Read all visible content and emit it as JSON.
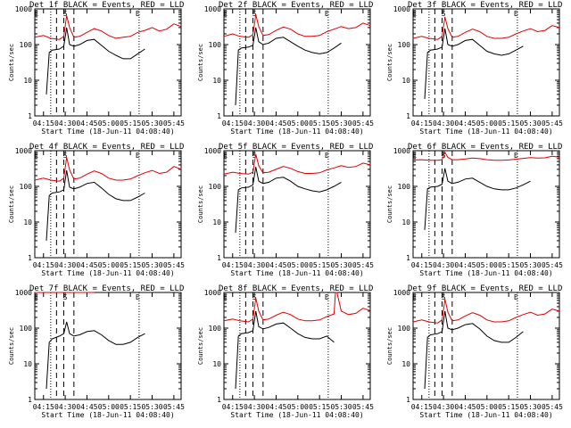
{
  "common": {
    "title_suffix": "BLACK = Events, RED = LLD",
    "ylabel": "Counts/sec",
    "xlabel": "Start Time (18-Jun-11 04:08:40)",
    "x_ticks": [
      "04:15",
      "04:30",
      "04:45",
      "05:00",
      "05:15",
      "05:30",
      "05:45"
    ],
    "y_ticks": [
      "1",
      "10",
      "100",
      "1000"
    ],
    "event_markers": [
      "E",
      "S",
      "E"
    ],
    "colors": {
      "events": "#000000",
      "lld": "#e00000",
      "axes": "#000000"
    }
  },
  "chart_data": [
    {
      "type": "line",
      "panel_label": "Det 1f",
      "ylim": [
        1,
        1000
      ],
      "y_scale": "log",
      "xlim": [
        "04:09",
        "05:50"
      ],
      "grid": false,
      "series": [
        {
          "name": "BLACK = Events",
          "x": [
            "04:17",
            "04:19",
            "04:21",
            "04:26",
            "04:29",
            "04:31",
            "04:33",
            "04:36",
            "04:40",
            "04:45",
            "04:50",
            "04:55",
            "05:00",
            "05:05",
            "05:10",
            "05:15",
            "05:20",
            "05:25"
          ],
          "values": [
            4,
            60,
            70,
            75,
            90,
            300,
            100,
            90,
            100,
            130,
            140,
            95,
            65,
            50,
            40,
            40,
            55,
            75
          ]
        },
        {
          "name": "RED = LLD",
          "x": [
            "04:09",
            "04:15",
            "04:20",
            "04:26",
            "04:29",
            "04:31",
            "04:33",
            "04:36",
            "04:40",
            "04:45",
            "04:50",
            "04:55",
            "05:00",
            "05:05",
            "05:10",
            "05:15",
            "05:20",
            "05:25",
            "05:30",
            "05:35",
            "05:40",
            "05:45",
            "05:50"
          ],
          "values": [
            160,
            180,
            150,
            140,
            170,
            650,
            300,
            160,
            170,
            220,
            280,
            240,
            180,
            150,
            160,
            170,
            220,
            250,
            300,
            240,
            270,
            380,
            320
          ]
        }
      ]
    },
    {
      "type": "line",
      "panel_label": "Det 2f",
      "ylim": [
        1,
        1000
      ],
      "y_scale": "log",
      "xlim": [
        "04:09",
        "05:50"
      ],
      "grid": false,
      "series": [
        {
          "name": "BLACK = Events",
          "x": [
            "04:17",
            "04:19",
            "04:21",
            "04:26",
            "04:29",
            "04:31",
            "04:33",
            "04:36",
            "04:40",
            "04:45",
            "04:50",
            "04:55",
            "05:00",
            "05:05",
            "05:10",
            "05:15",
            "05:20",
            "05:25",
            "05:30"
          ],
          "values": [
            2,
            70,
            80,
            85,
            95,
            300,
            120,
            100,
            110,
            150,
            160,
            120,
            90,
            70,
            60,
            55,
            60,
            80,
            110
          ]
        },
        {
          "name": "RED = LLD",
          "x": [
            "04:09",
            "04:15",
            "04:20",
            "04:26",
            "04:29",
            "04:31",
            "04:33",
            "04:36",
            "04:40",
            "04:45",
            "04:50",
            "04:55",
            "05:00",
            "05:05",
            "05:10",
            "05:15",
            "05:20",
            "05:25",
            "05:30",
            "05:35",
            "05:40",
            "05:45",
            "05:50"
          ],
          "values": [
            170,
            200,
            170,
            160,
            190,
            700,
            320,
            180,
            190,
            250,
            310,
            270,
            200,
            170,
            170,
            180,
            230,
            270,
            320,
            280,
            300,
            400,
            340
          ]
        }
      ]
    },
    {
      "type": "line",
      "panel_label": "Det 3f",
      "ylim": [
        1,
        1000
      ],
      "y_scale": "log",
      "xlim": [
        "04:09",
        "05:50"
      ],
      "grid": false,
      "series": [
        {
          "name": "BLACK = Events",
          "x": [
            "04:17",
            "04:19",
            "04:21",
            "04:26",
            "04:29",
            "04:31",
            "04:33",
            "04:36",
            "04:40",
            "04:45",
            "04:50",
            "04:55",
            "05:00",
            "05:05",
            "05:10",
            "05:15",
            "05:20",
            "05:25"
          ],
          "values": [
            3,
            60,
            70,
            75,
            85,
            280,
            100,
            90,
            100,
            130,
            140,
            95,
            65,
            55,
            50,
            55,
            70,
            90
          ]
        },
        {
          "name": "RED = LLD",
          "x": [
            "04:09",
            "04:15",
            "04:20",
            "04:26",
            "04:29",
            "04:31",
            "04:33",
            "04:36",
            "04:40",
            "04:45",
            "04:50",
            "04:55",
            "05:00",
            "05:05",
            "05:10",
            "05:15",
            "05:20",
            "05:25",
            "05:30",
            "05:35",
            "05:40",
            "05:45",
            "05:50"
          ],
          "values": [
            150,
            170,
            150,
            140,
            170,
            600,
            280,
            160,
            170,
            220,
            270,
            230,
            170,
            150,
            150,
            160,
            200,
            240,
            280,
            230,
            250,
            340,
            300
          ]
        }
      ]
    },
    {
      "type": "line",
      "panel_label": "Det 4f",
      "ylim": [
        1,
        1000
      ],
      "y_scale": "log",
      "xlim": [
        "04:09",
        "05:50"
      ],
      "grid": false,
      "series": [
        {
          "name": "BLACK = Events",
          "x": [
            "04:17",
            "04:19",
            "04:21",
            "04:26",
            "04:29",
            "04:31",
            "04:33",
            "04:36",
            "04:40",
            "04:45",
            "04:50",
            "04:55",
            "05:00",
            "05:05",
            "05:10",
            "05:15",
            "05:20",
            "05:25"
          ],
          "values": [
            3,
            55,
            65,
            70,
            80,
            280,
            95,
            85,
            95,
            120,
            130,
            90,
            60,
            45,
            40,
            40,
            50,
            65
          ]
        },
        {
          "name": "RED = LLD",
          "x": [
            "04:09",
            "04:15",
            "04:20",
            "04:26",
            "04:29",
            "04:31",
            "04:33",
            "04:36",
            "04:40",
            "04:45",
            "04:50",
            "04:55",
            "05:00",
            "05:05",
            "05:10",
            "05:15",
            "05:20",
            "05:25",
            "05:30",
            "05:35",
            "05:40",
            "05:45",
            "05:50"
          ],
          "values": [
            150,
            170,
            150,
            140,
            170,
            650,
            290,
            160,
            170,
            220,
            270,
            230,
            170,
            150,
            150,
            160,
            200,
            240,
            280,
            230,
            250,
            360,
            300
          ]
        }
      ]
    },
    {
      "type": "line",
      "panel_label": "Det 5f",
      "ylim": [
        1,
        1000
      ],
      "y_scale": "log",
      "xlim": [
        "04:09",
        "05:50"
      ],
      "grid": false,
      "series": [
        {
          "name": "BLACK = Events",
          "x": [
            "04:17",
            "04:19",
            "04:21",
            "04:26",
            "04:29",
            "04:31",
            "04:33",
            "04:36",
            "04:40",
            "04:45",
            "04:50",
            "04:55",
            "05:00",
            "05:05",
            "05:10",
            "05:15",
            "05:20",
            "05:25",
            "05:30"
          ],
          "values": [
            5,
            80,
            90,
            95,
            110,
            350,
            140,
            120,
            130,
            170,
            180,
            140,
            100,
            85,
            75,
            70,
            80,
            100,
            130
          ]
        },
        {
          "name": "RED = LLD",
          "x": [
            "04:09",
            "04:15",
            "04:20",
            "04:26",
            "04:29",
            "04:31",
            "04:33",
            "04:36",
            "04:40",
            "04:45",
            "04:50",
            "04:55",
            "05:00",
            "05:05",
            "05:10",
            "05:15",
            "05:20",
            "05:25",
            "05:30",
            "05:35",
            "05:40",
            "05:45",
            "05:50"
          ],
          "values": [
            220,
            250,
            230,
            220,
            250,
            800,
            380,
            240,
            250,
            300,
            360,
            320,
            260,
            230,
            230,
            240,
            290,
            330,
            380,
            340,
            360,
            450,
            400
          ]
        }
      ]
    },
    {
      "type": "line",
      "panel_label": "Det 6f",
      "ylim": [
        1,
        1000
      ],
      "y_scale": "log",
      "xlim": [
        "04:09",
        "05:50"
      ],
      "grid": false,
      "series": [
        {
          "name": "BLACK = Events",
          "x": [
            "04:17",
            "04:19",
            "04:21",
            "04:26",
            "04:29",
            "04:31",
            "04:33",
            "04:36",
            "04:40",
            "04:45",
            "04:50",
            "04:55",
            "05:00",
            "05:05",
            "05:10",
            "05:15",
            "05:20",
            "05:25",
            "05:30"
          ],
          "values": [
            6,
            85,
            95,
            100,
            115,
            320,
            140,
            120,
            130,
            160,
            170,
            130,
            100,
            85,
            80,
            80,
            90,
            110,
            140
          ]
        },
        {
          "name": "RED = LLD",
          "x": [
            "04:09",
            "04:15",
            "04:20",
            "04:26",
            "04:29",
            "04:31",
            "04:33",
            "04:36",
            "04:40",
            "04:45",
            "04:50",
            "04:55",
            "05:00",
            "05:05",
            "05:10",
            "05:15",
            "05:20",
            "05:25",
            "05:30",
            "05:35",
            "05:40",
            "05:45",
            "05:50"
          ],
          "values": [
            550,
            560,
            540,
            540,
            560,
            900,
            650,
            560,
            560,
            590,
            620,
            600,
            560,
            540,
            540,
            550,
            580,
            610,
            640,
            620,
            630,
            700,
            660
          ]
        }
      ]
    },
    {
      "type": "line",
      "panel_label": "Det 7f",
      "ylim": [
        1,
        1000
      ],
      "y_scale": "log",
      "xlim": [
        "04:09",
        "05:50"
      ],
      "grid": false,
      "series": [
        {
          "name": "BLACK = Events",
          "x": [
            "04:17",
            "04:19",
            "04:21",
            "04:26",
            "04:29",
            "04:31",
            "04:33",
            "04:36",
            "04:40",
            "04:45",
            "04:50",
            "04:55",
            "05:00",
            "05:05",
            "05:10",
            "05:15",
            "05:20",
            "05:25"
          ],
          "values": [
            2,
            40,
            50,
            60,
            70,
            150,
            70,
            60,
            65,
            80,
            85,
            65,
            45,
            35,
            35,
            40,
            55,
            70
          ]
        },
        {
          "name": "RED = LLD",
          "x": [
            "04:09",
            "04:15",
            "04:20",
            "04:26",
            "04:29",
            "04:31",
            "04:33",
            "04:36",
            "04:40",
            "04:45",
            "04:50"
          ],
          "values": [
            1000,
            1000,
            1000,
            1000,
            1000,
            1000,
            1000,
            1000,
            1000,
            1000,
            1000
          ]
        }
      ]
    },
    {
      "type": "line",
      "panel_label": "Det 8f",
      "ylim": [
        1,
        1000
      ],
      "y_scale": "log",
      "xlim": [
        "04:09",
        "05:50"
      ],
      "grid": false,
      "series": [
        {
          "name": "BLACK = Events",
          "x": [
            "04:17",
            "04:19",
            "04:21",
            "04:26",
            "04:29",
            "04:31",
            "04:33",
            "04:36",
            "04:40",
            "04:45",
            "04:50",
            "04:55",
            "05:00",
            "05:05",
            "05:10",
            "05:15",
            "05:20",
            "05:25"
          ],
          "values": [
            2,
            60,
            70,
            75,
            85,
            300,
            110,
            95,
            105,
            130,
            140,
            100,
            70,
            55,
            50,
            50,
            60,
            40
          ]
        },
        {
          "name": "RED = LLD",
          "x": [
            "04:09",
            "04:15",
            "04:20",
            "04:26",
            "04:29",
            "04:31",
            "04:33",
            "04:36",
            "04:40",
            "04:45",
            "04:50",
            "04:55",
            "05:00",
            "05:05",
            "05:10",
            "05:15",
            "05:20",
            "05:25",
            "05:26",
            "05:27",
            "05:30",
            "05:35",
            "05:40",
            "05:45",
            "05:50"
          ],
          "values": [
            160,
            180,
            160,
            150,
            180,
            700,
            300,
            170,
            180,
            230,
            280,
            240,
            180,
            160,
            160,
            170,
            210,
            250,
            1000,
            1000,
            300,
            240,
            260,
            360,
            310
          ]
        }
      ]
    },
    {
      "type": "line",
      "panel_label": "Det 9f",
      "ylim": [
        1,
        1000
      ],
      "y_scale": "log",
      "xlim": [
        "04:09",
        "05:50"
      ],
      "grid": false,
      "series": [
        {
          "name": "BLACK = Events",
          "x": [
            "04:17",
            "04:19",
            "04:21",
            "04:26",
            "04:29",
            "04:31",
            "04:33",
            "04:36",
            "04:40",
            "04:45",
            "04:50",
            "04:55",
            "05:00",
            "05:05",
            "05:10",
            "05:15",
            "05:20",
            "05:25"
          ],
          "values": [
            2,
            55,
            65,
            70,
            80,
            300,
            100,
            90,
            100,
            125,
            135,
            95,
            60,
            45,
            40,
            40,
            55,
            80
          ]
        },
        {
          "name": "RED = LLD",
          "x": [
            "04:09",
            "04:15",
            "04:20",
            "04:26",
            "04:29",
            "04:31",
            "04:33",
            "04:36",
            "04:40",
            "04:45",
            "04:50",
            "04:55",
            "05:00",
            "05:05",
            "05:10",
            "05:15",
            "05:20",
            "05:25",
            "05:30",
            "05:35",
            "05:40",
            "05:45",
            "05:50"
          ],
          "values": [
            150,
            170,
            150,
            140,
            170,
            650,
            280,
            160,
            170,
            220,
            270,
            230,
            170,
            150,
            150,
            160,
            200,
            240,
            280,
            230,
            250,
            340,
            300
          ]
        }
      ]
    }
  ]
}
